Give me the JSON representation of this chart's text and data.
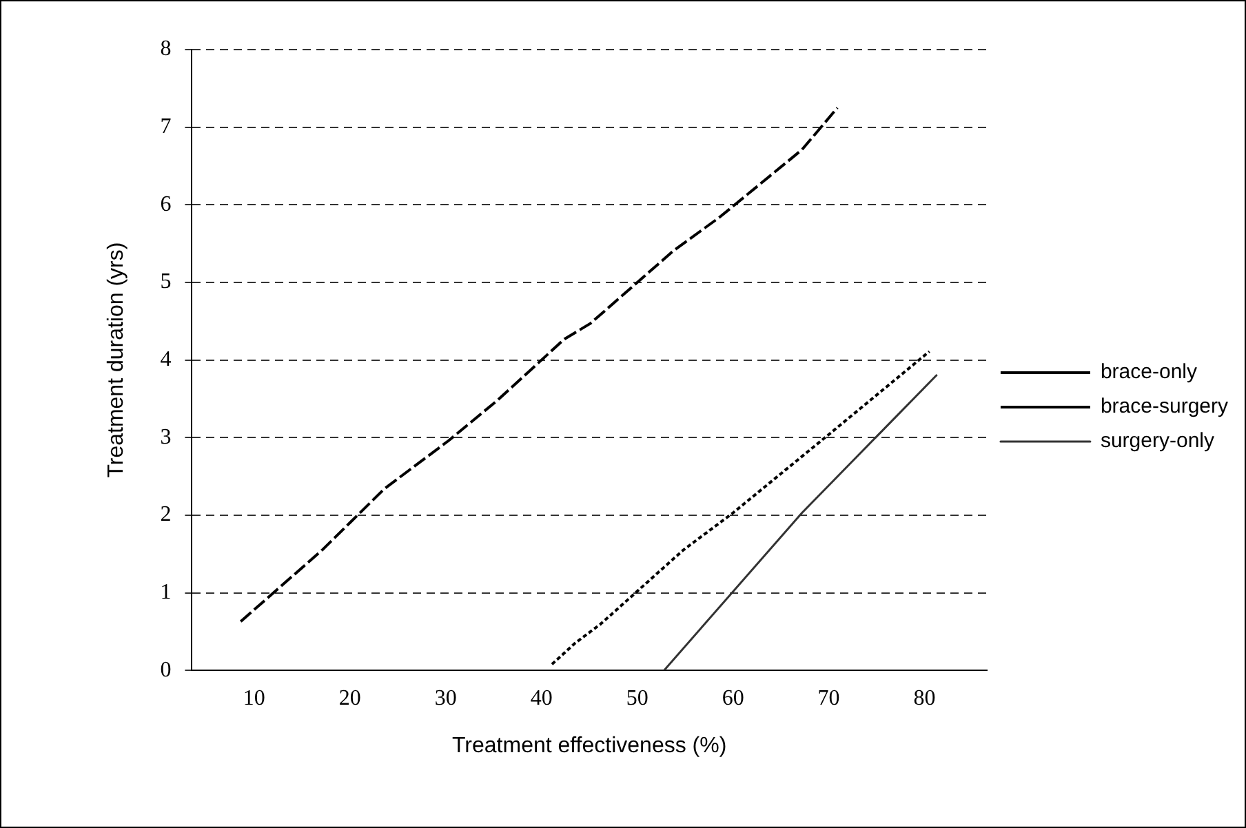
{
  "chart_data": {
    "type": "line",
    "xlabel": "Treatment effectiveness (%)",
    "ylabel": "Treatment duration (yrs)",
    "xlim": [
      3.5,
      86.5
    ],
    "xticks": [
      10,
      20,
      30,
      40,
      50,
      60,
      70,
      80
    ],
    "ylim": [
      0,
      8
    ],
    "yticks": [
      0,
      1,
      2,
      3,
      4,
      5,
      6,
      7,
      8
    ],
    "grid": "y",
    "legend": "right",
    "marker": "none",
    "series": [
      {
        "name": "brace-only",
        "color": "#000000",
        "line_style": "dashed",
        "x": [
          8.6,
          17.1,
          23.6,
          30.3,
          35.4,
          42.4,
          45.1,
          53.8,
          58.6,
          67.2,
          70.9
        ],
        "values": [
          0.63,
          1.55,
          2.34,
          2.96,
          3.48,
          4.27,
          4.47,
          5.41,
          5.84,
          6.71,
          7.25
        ]
      },
      {
        "name": "brace-surgery",
        "color": "#000000",
        "line_style": "dotted",
        "x": [
          41.1,
          43.5,
          46.2,
          54.8,
          60.0,
          70.0,
          80.5
        ],
        "values": [
          0.08,
          0.35,
          0.6,
          1.55,
          2.03,
          3.04,
          4.11
        ]
      },
      {
        "name": "surgery-only",
        "color": "#333333",
        "line_style": "solid",
        "x": [
          52.8,
          67.2,
          81.3
        ],
        "values": [
          0,
          2.03,
          3.81
        ]
      }
    ]
  }
}
